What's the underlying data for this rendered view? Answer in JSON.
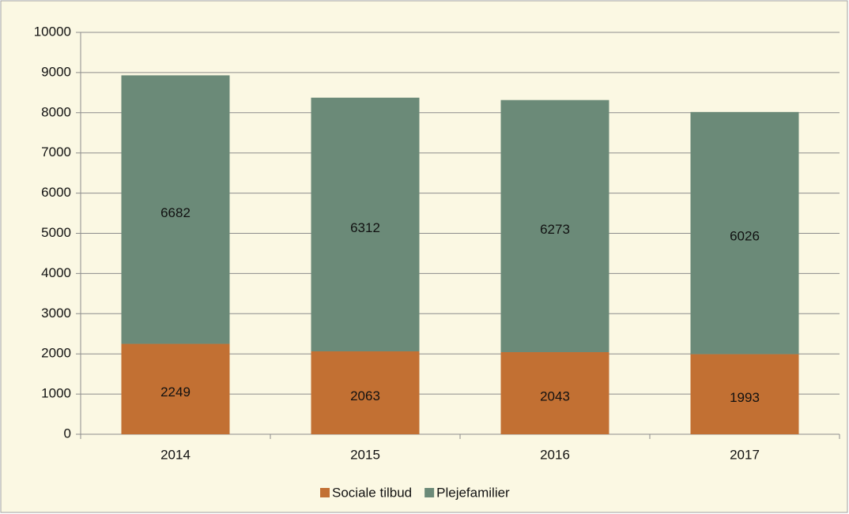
{
  "chart_data": {
    "type": "stacked_bar",
    "categories": [
      "2014",
      "2015",
      "2016",
      "2017"
    ],
    "series": [
      {
        "name": "Sociale tilbud",
        "color": "#c27033",
        "values": [
          2249,
          2063,
          2043,
          1993
        ]
      },
      {
        "name": "Plejefamilier",
        "color": "#6b8a78",
        "values": [
          6682,
          6312,
          6273,
          6026
        ]
      }
    ],
    "ylim": [
      0,
      10000
    ],
    "yticks": [
      0,
      1000,
      2000,
      3000,
      4000,
      5000,
      6000,
      7000,
      8000,
      9000,
      10000
    ],
    "grid": true,
    "legend": "bottom"
  }
}
